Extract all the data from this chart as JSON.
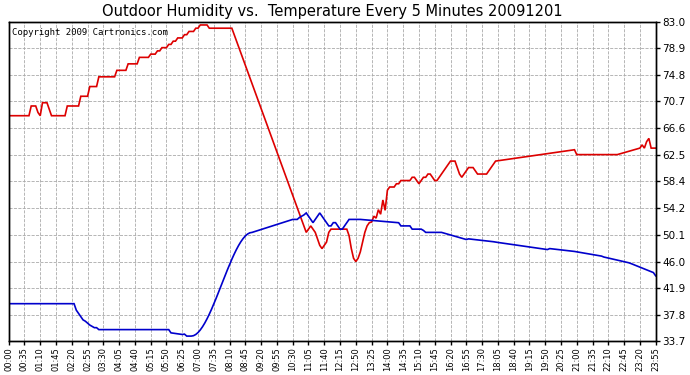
{
  "title": "Outdoor Humidity vs.  Temperature Every 5 Minutes 20091201",
  "copyright": "Copyright 2009 Cartronics.com",
  "yticks": [
    33.7,
    37.8,
    41.9,
    46.0,
    50.1,
    54.2,
    58.4,
    62.5,
    66.6,
    70.7,
    74.8,
    78.9,
    83.0
  ],
  "ylim": [
    33.7,
    83.0
  ],
  "bg_color": "#ffffff",
  "grid_color": "#aaaaaa",
  "red_color": "#dd0000",
  "blue_color": "#0000cc",
  "xtick_labels": [
    "00:00",
    "00:35",
    "01:10",
    "01:45",
    "02:20",
    "02:55",
    "03:30",
    "04:05",
    "04:40",
    "05:15",
    "05:50",
    "06:25",
    "07:00",
    "07:35",
    "08:10",
    "08:45",
    "09:20",
    "09:55",
    "10:30",
    "11:05",
    "11:40",
    "12:15",
    "12:50",
    "13:25",
    "14:00",
    "14:35",
    "15:10",
    "15:45",
    "16:20",
    "16:55",
    "17:30",
    "18:05",
    "18:40",
    "19:15",
    "19:50",
    "20:25",
    "21:00",
    "21:35",
    "22:10",
    "22:45",
    "23:20",
    "23:55"
  ]
}
